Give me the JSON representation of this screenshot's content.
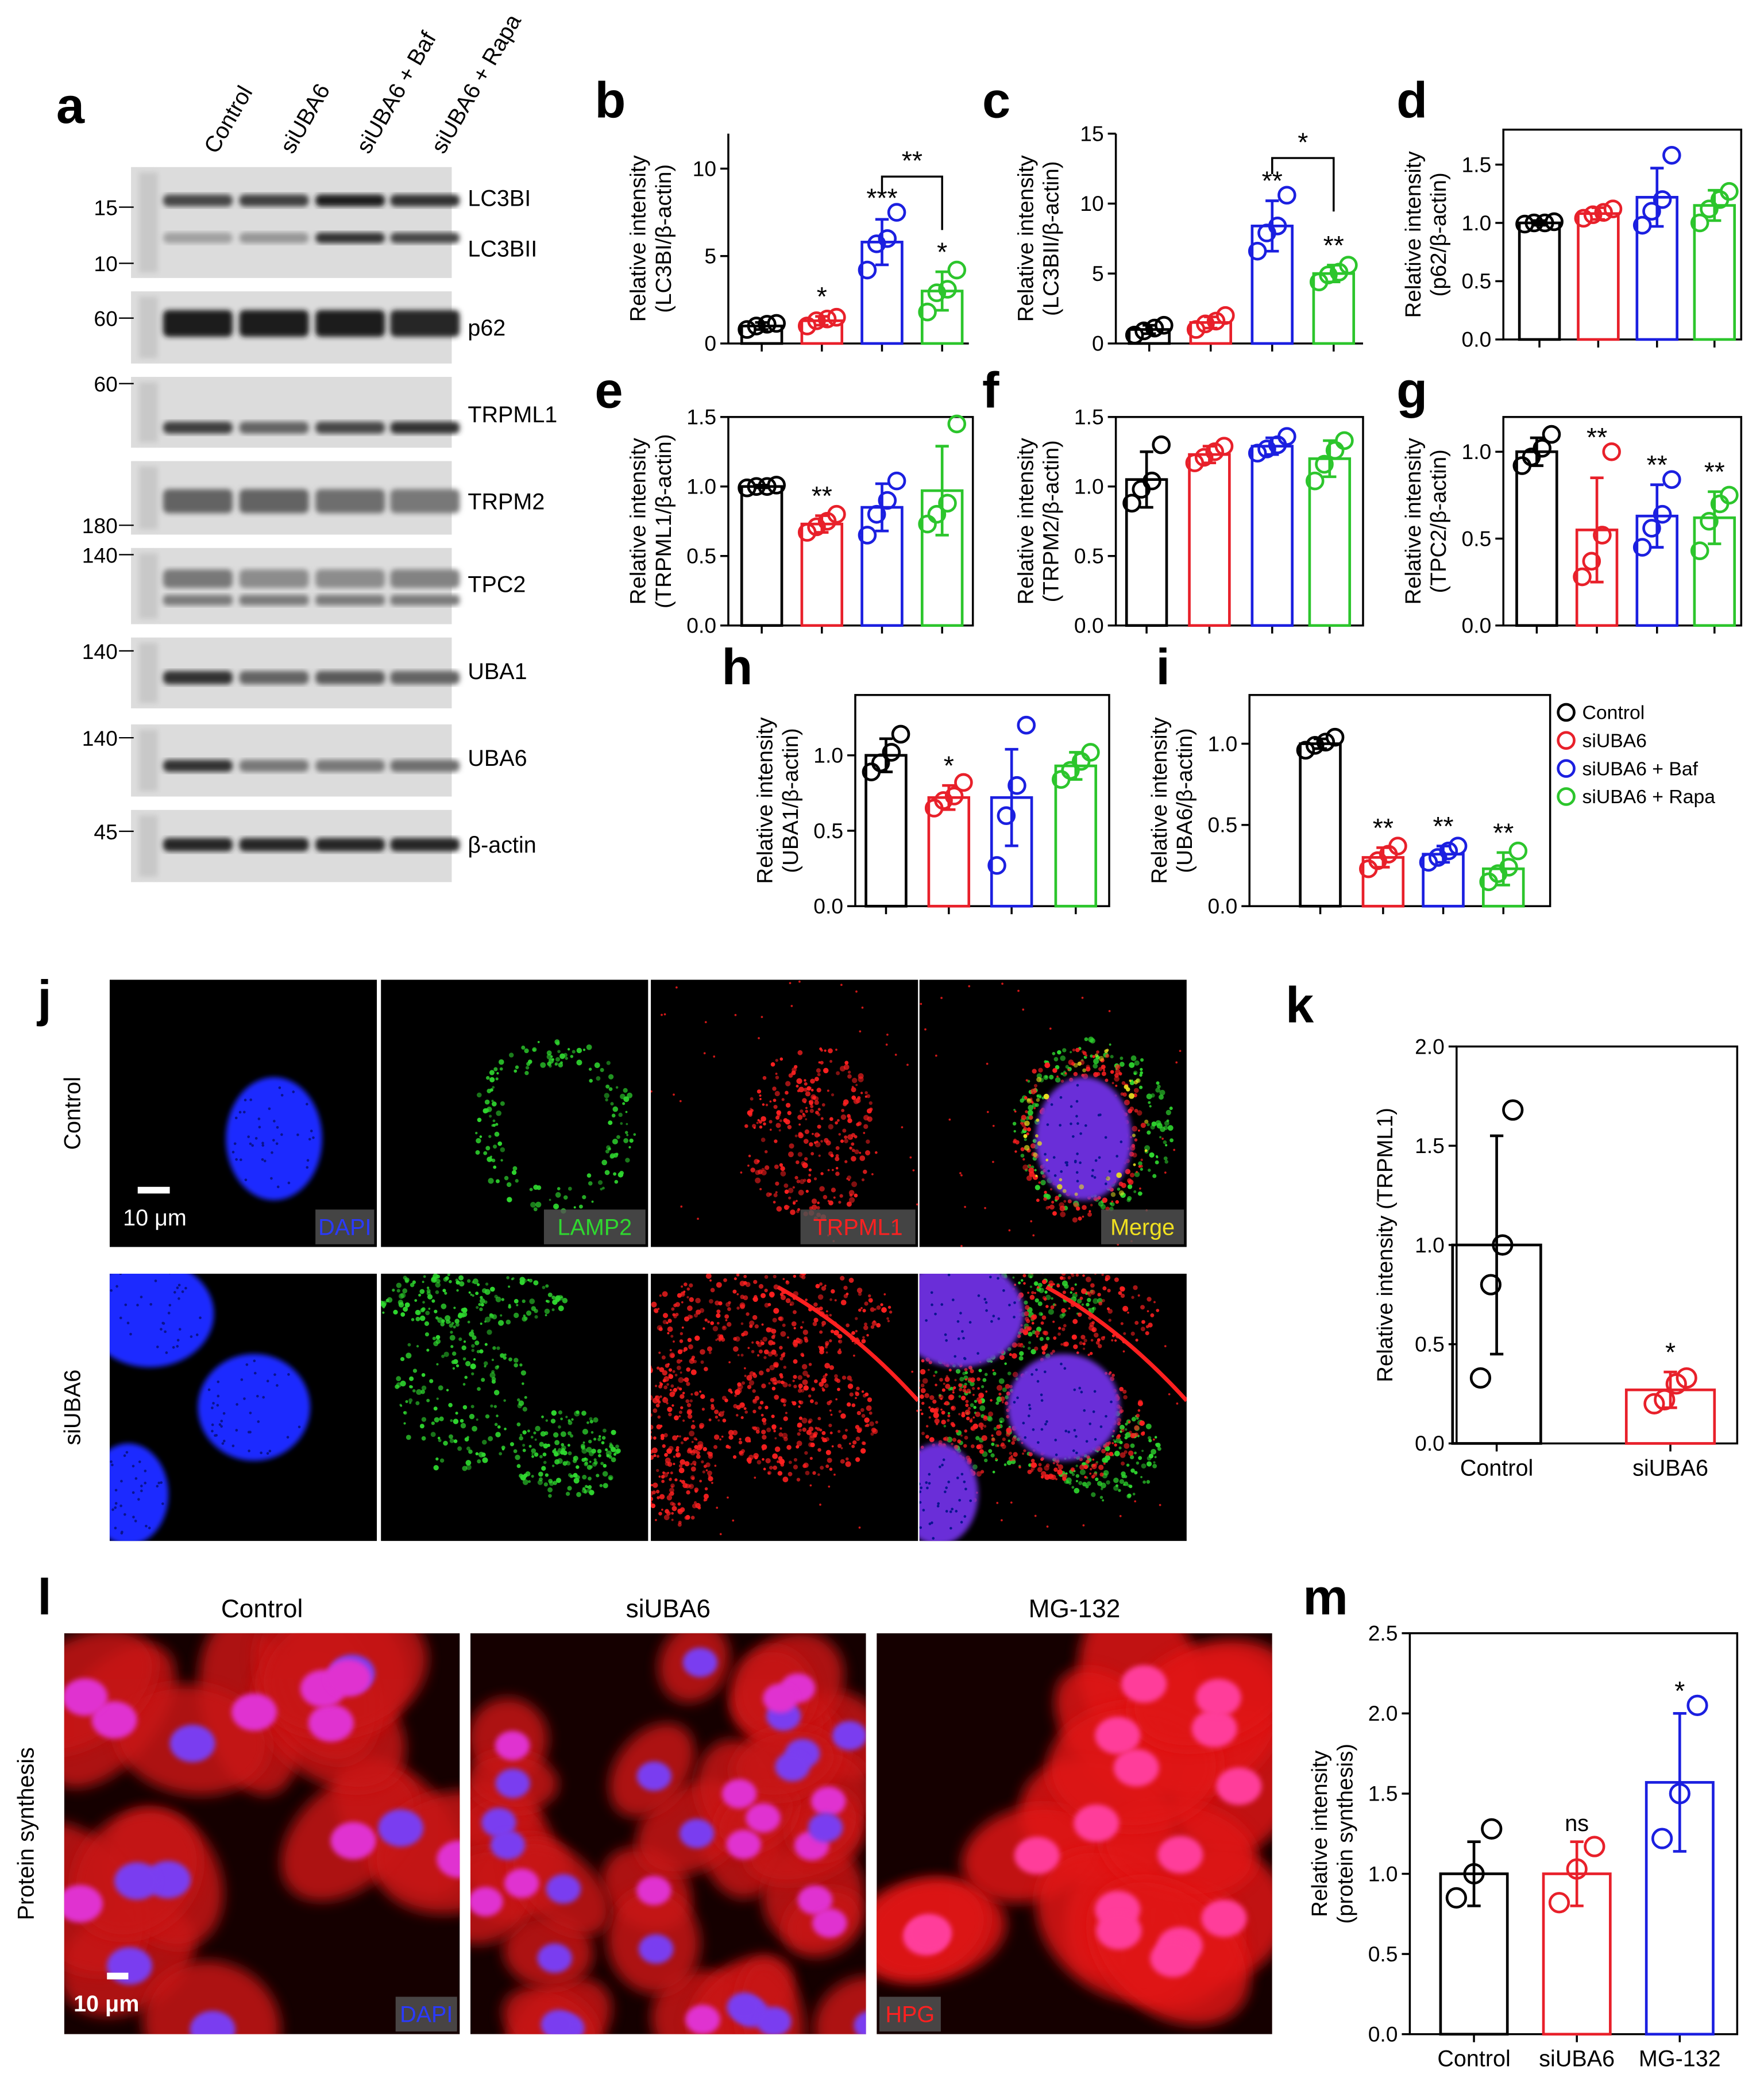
{
  "blot": {
    "label": "a",
    "lanes": [
      "Control",
      "siUBA6",
      "siUBA6 + Baf",
      "siUBA6 + Rapa"
    ],
    "rows": [
      {
        "bands": [
          "LC3BI",
          "LC3BII"
        ],
        "markers": [
          "15",
          "10"
        ]
      },
      {
        "bands": [
          "p62"
        ],
        "markers": [
          "60"
        ]
      },
      {
        "bands": [
          "TRPML1"
        ],
        "markers": [
          "60"
        ]
      },
      {
        "bands": [
          "TRPM2"
        ],
        "markers": [
          "180"
        ]
      },
      {
        "bands": [
          "TPC2"
        ],
        "markers": [
          "140"
        ]
      },
      {
        "bands": [
          "UBA1"
        ],
        "markers": [
          "140"
        ]
      },
      {
        "bands": [
          "UBA6"
        ],
        "markers": [
          "140"
        ]
      },
      {
        "bands": [
          "β-actin"
        ],
        "markers": [
          "45"
        ]
      }
    ]
  },
  "legend": [
    {
      "name": "Control",
      "color": "#000000"
    },
    {
      "name": "siUBA6",
      "color": "#e8202a"
    },
    {
      "name": "siUBA6 + Baf",
      "color": "#1b1fe0"
    },
    {
      "name": "siUBA6 + Rapa",
      "color": "#2cc52c"
    }
  ],
  "micrographs_j": {
    "label": "j",
    "rows": [
      "Control",
      "siUBA6"
    ],
    "channels": [
      "DAPI",
      "LAMP2",
      "TRPML1",
      "Merge"
    ],
    "scale": "10 μm"
  },
  "micrographs_l": {
    "label": "l",
    "columns": [
      "Control",
      "siUBA6",
      "MG-132"
    ],
    "row": "Protein synthesis",
    "scale": "10 μm",
    "tags": [
      "DAPI",
      "HPG"
    ]
  },
  "chart_data": [
    {
      "type": "bar",
      "label": "b",
      "ylabel": [
        "Relative intensity",
        "(LC3BI/β-actin)"
      ],
      "frame": false,
      "ylim": [
        0,
        12
      ],
      "yticks": [
        0,
        5,
        10
      ],
      "colors": [
        "#000000",
        "#e8202a",
        "#1b1fe0",
        "#2cc52c"
      ],
      "values": [
        1.0,
        1.3,
        5.8,
        3.0
      ],
      "errors": [
        0.2,
        0.25,
        1.3,
        1.1
      ],
      "points": [
        [
          0.8,
          1.0,
          1.1,
          1.15
        ],
        [
          1.0,
          1.3,
          1.4,
          1.5
        ],
        [
          4.2,
          5.7,
          6.0,
          7.5
        ],
        [
          1.8,
          2.9,
          3.1,
          4.2
        ]
      ],
      "annotations": [
        null,
        "*",
        "***",
        "*"
      ],
      "brackets": [
        {
          "from": 2,
          "to": 3,
          "label": "**"
        }
      ]
    },
    {
      "type": "bar",
      "label": "c",
      "ylabel": [
        "Relative intensity",
        "(LC3BII/β-actin)"
      ],
      "frame": false,
      "ylim": [
        0,
        15
      ],
      "yticks": [
        0,
        5,
        10,
        15
      ],
      "colors": [
        "#000000",
        "#e8202a",
        "#1b1fe0",
        "#2cc52c"
      ],
      "values": [
        1.0,
        1.5,
        8.4,
        5.0
      ],
      "errors": [
        0.3,
        0.4,
        1.8,
        0.6
      ],
      "points": [
        [
          0.6,
          0.9,
          1.1,
          1.3
        ],
        [
          1.0,
          1.4,
          1.6,
          2.0
        ],
        [
          6.6,
          7.9,
          8.4,
          10.6
        ],
        [
          4.4,
          4.9,
          5.1,
          5.6
        ]
      ],
      "annotations": [
        null,
        null,
        "**",
        "**"
      ],
      "brackets": [
        {
          "from": 2,
          "to": 3,
          "label": "*"
        }
      ]
    },
    {
      "type": "bar",
      "label": "d",
      "ylabel": [
        "Relative intensity",
        "(p62/β-actin)"
      ],
      "frame": true,
      "ylim": [
        0,
        1.8
      ],
      "yticks": [
        {
          "value": 0,
          "label": "0.0"
        },
        0.5,
        {
          "value": 1,
          "label": "1.0"
        },
        1.5
      ],
      "colors": [
        "#000000",
        "#e8202a",
        "#1b1fe0",
        "#2cc52c"
      ],
      "values": [
        1.0,
        1.08,
        1.22,
        1.15
      ],
      "errors": [
        0.02,
        0.05,
        0.25,
        0.13
      ],
      "points": [
        [
          0.99,
          1.0,
          1.0,
          1.01
        ],
        [
          1.04,
          1.07,
          1.09,
          1.12
        ],
        [
          0.98,
          1.1,
          1.2,
          1.58
        ],
        [
          1.0,
          1.12,
          1.2,
          1.27
        ]
      ],
      "annotations": [
        null,
        null,
        null,
        null
      ],
      "brackets": []
    },
    {
      "type": "bar",
      "label": "e",
      "ylabel": [
        "Relative intensity",
        "(TRPML1/β-actin)"
      ],
      "frame": true,
      "ylim": [
        0,
        1.5
      ],
      "yticks": [
        {
          "value": 0,
          "label": "0.0"
        },
        0.5,
        {
          "value": 1,
          "label": "1.0"
        },
        1.5
      ],
      "colors": [
        "#000000",
        "#e8202a",
        "#1b1fe0",
        "#2cc52c"
      ],
      "values": [
        1.0,
        0.73,
        0.85,
        0.97
      ],
      "errors": [
        0.01,
        0.06,
        0.17,
        0.32
      ],
      "points": [
        [
          0.99,
          1.0,
          1.0,
          1.01
        ],
        [
          0.67,
          0.71,
          0.75,
          0.8
        ],
        [
          0.65,
          0.8,
          0.9,
          1.04
        ],
        [
          0.73,
          0.8,
          0.88,
          1.45
        ]
      ],
      "annotations": [
        null,
        "**",
        null,
        null
      ],
      "brackets": []
    },
    {
      "type": "bar",
      "label": "f",
      "ylabel": [
        "Relative intensity",
        "(TRPM2/β-actin)"
      ],
      "frame": true,
      "ylim": [
        0,
        1.5
      ],
      "yticks": [
        {
          "value": 0,
          "label": "0.0"
        },
        0.5,
        {
          "value": 1,
          "label": "1.0"
        },
        1.5
      ],
      "colors": [
        "#000000",
        "#e8202a",
        "#1b1fe0",
        "#2cc52c"
      ],
      "values": [
        1.05,
        1.23,
        1.29,
        1.2
      ],
      "errors": [
        0.2,
        0.06,
        0.06,
        0.13
      ],
      "points": [
        [
          0.88,
          0.98,
          1.04,
          1.3
        ],
        [
          1.17,
          1.21,
          1.25,
          1.29
        ],
        [
          1.24,
          1.27,
          1.3,
          1.36
        ],
        [
          1.04,
          1.16,
          1.26,
          1.33
        ]
      ],
      "annotations": [
        null,
        null,
        null,
        null
      ],
      "brackets": []
    },
    {
      "type": "bar",
      "label": "g",
      "ylabel": [
        "Relative intensity",
        "(TPC2/β-actin)"
      ],
      "frame": true,
      "ylim": [
        0,
        1.2
      ],
      "yticks": [
        {
          "value": 0,
          "label": "0.0"
        },
        0.5,
        {
          "value": 1,
          "label": "1.0"
        }
      ],
      "colors": [
        "#000000",
        "#e8202a",
        "#1b1fe0",
        "#2cc52c"
      ],
      "values": [
        1.0,
        0.55,
        0.63,
        0.62
      ],
      "errors": [
        0.08,
        0.3,
        0.18,
        0.15
      ],
      "points": [
        [
          0.92,
          0.97,
          1.02,
          1.1
        ],
        [
          0.28,
          0.37,
          0.52,
          1.0
        ],
        [
          0.45,
          0.56,
          0.64,
          0.84
        ],
        [
          0.43,
          0.6,
          0.7,
          0.75
        ]
      ],
      "annotations": [
        null,
        "**",
        "**",
        "**"
      ],
      "brackets": []
    },
    {
      "type": "bar",
      "label": "h",
      "ylabel": [
        "Relative intensity",
        "(UBA1/β-actin)"
      ],
      "frame": true,
      "ylim": [
        0,
        1.4
      ],
      "yticks": [
        {
          "value": 0,
          "label": "0.0"
        },
        0.5,
        {
          "value": 1,
          "label": "1.0"
        }
      ],
      "colors": [
        "#000000",
        "#e8202a",
        "#1b1fe0",
        "#2cc52c"
      ],
      "values": [
        1.0,
        0.72,
        0.72,
        0.93
      ],
      "errors": [
        0.11,
        0.08,
        0.32,
        0.09
      ],
      "points": [
        [
          0.89,
          0.95,
          1.02,
          1.14
        ],
        [
          0.65,
          0.7,
          0.73,
          0.82
        ],
        [
          0.27,
          0.6,
          0.8,
          1.2
        ],
        [
          0.84,
          0.9,
          0.96,
          1.02
        ]
      ],
      "annotations": [
        null,
        "*",
        null,
        null
      ],
      "brackets": []
    },
    {
      "type": "bar",
      "label": "i",
      "ylabel": [
        "Relative intensity",
        "(UBA6/β-actin)"
      ],
      "frame": true,
      "ylim": [
        0,
        1.3
      ],
      "yticks": [
        {
          "value": 0,
          "label": "0.0"
        },
        0.5,
        {
          "value": 1,
          "label": "1.0"
        }
      ],
      "colors": [
        "#000000",
        "#e8202a",
        "#1b1fe0",
        "#2cc52c"
      ],
      "values": [
        1.0,
        0.3,
        0.32,
        0.23
      ],
      "errors": [
        0.03,
        0.06,
        0.05,
        0.1
      ],
      "points": [
        [
          0.96,
          0.99,
          1.01,
          1.04
        ],
        [
          0.23,
          0.28,
          0.32,
          0.37
        ],
        [
          0.27,
          0.3,
          0.34,
          0.37
        ],
        [
          0.15,
          0.2,
          0.24,
          0.34
        ]
      ],
      "annotations": [
        null,
        "**",
        "**",
        "**"
      ],
      "brackets": []
    },
    {
      "type": "bar",
      "label": "k",
      "ylabel": [
        "Relative intensity (TRPML1)"
      ],
      "frame": true,
      "ylim": [
        0,
        2
      ],
      "yticks": [
        {
          "value": 0,
          "label": "0.0"
        },
        0.5,
        {
          "value": 1,
          "label": "1.0"
        },
        1.5,
        {
          "value": 2,
          "label": "2.0"
        }
      ],
      "categories": [
        "Control",
        "siUBA6"
      ],
      "colors": [
        "#000000",
        "#e8202a"
      ],
      "values": [
        1.0,
        0.27
      ],
      "errors": [
        0.55,
        0.09
      ],
      "points": [
        [
          0.33,
          0.8,
          1.0,
          1.68
        ],
        [
          0.2,
          0.22,
          0.3,
          0.33
        ]
      ],
      "annotations": [
        null,
        "*"
      ],
      "brackets": []
    },
    {
      "type": "bar",
      "label": "m",
      "ylabel": [
        "Relative intensity",
        "(protein synthesis)"
      ],
      "frame": true,
      "ylim": [
        0,
        2.5
      ],
      "yticks": [
        {
          "value": 0,
          "label": "0.0"
        },
        0.5,
        {
          "value": 1,
          "label": "1.0"
        },
        1.5,
        {
          "value": 2,
          "label": "2.0"
        },
        2.5
      ],
      "categories": [
        "Control",
        "siUBA6",
        "MG-132"
      ],
      "colors": [
        "#000000",
        "#e8202a",
        "#1b1fe0"
      ],
      "values": [
        1.0,
        1.0,
        1.57
      ],
      "errors": [
        0.2,
        0.2,
        0.43
      ],
      "points": [
        [
          0.85,
          1.0,
          1.28
        ],
        [
          0.82,
          1.03,
          1.17
        ],
        [
          1.22,
          1.5,
          2.05
        ]
      ],
      "annotations": [
        null,
        "ns",
        "*"
      ],
      "brackets": []
    }
  ]
}
